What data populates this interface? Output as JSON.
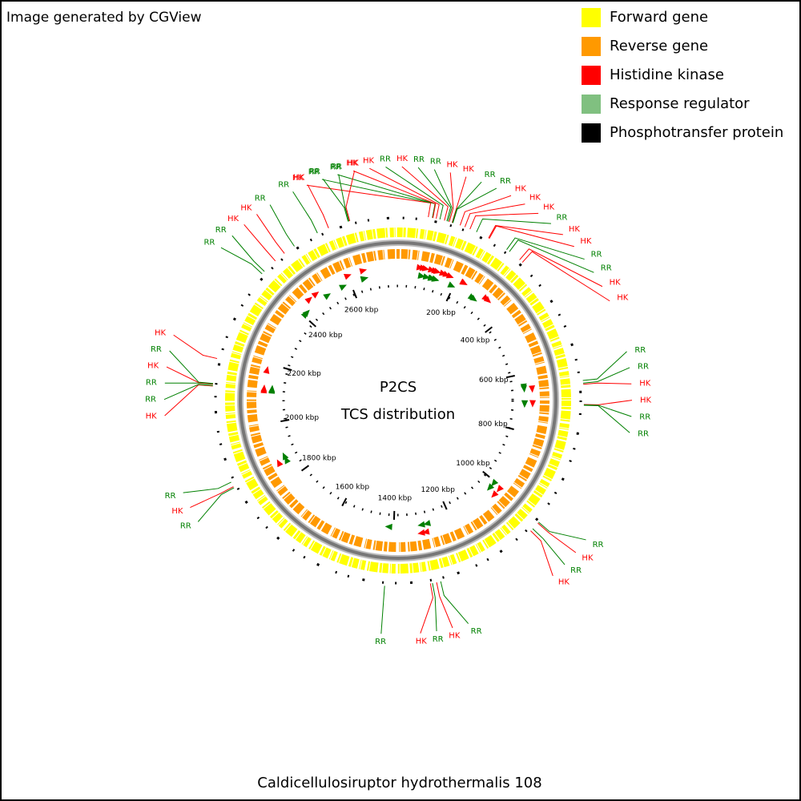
{
  "header": {
    "credit": "Image generated by CGView"
  },
  "legend": [
    {
      "label": "Forward gene",
      "color": "#ffff00"
    },
    {
      "label": "Reverse gene",
      "color": "#ff9900"
    },
    {
      "label": "Histidine kinase",
      "color": "#ff0000"
    },
    {
      "label": "Response regulator",
      "color": "#80c080"
    },
    {
      "label": "Phosphotransfer protein",
      "color": "#000000"
    }
  ],
  "center": {
    "title": "P2CS",
    "subtitle": "TCS distribution"
  },
  "footer": "Caldicellulosiruptor hydrothermalis 108",
  "genome": {
    "range_kbp": [
      0,
      2770
    ],
    "ticks": [
      {
        "value": 200,
        "label": "200 kbp"
      },
      {
        "value": 400,
        "label": "400 kbp"
      },
      {
        "value": 600,
        "label": "600 kbp"
      },
      {
        "value": 800,
        "label": "800 kbp"
      },
      {
        "value": 1000,
        "label": "1000 kbp"
      },
      {
        "value": 1200,
        "label": "1200 kbp"
      },
      {
        "value": 1400,
        "label": "1400 kbp"
      },
      {
        "value": 1600,
        "label": "1600 kbp"
      },
      {
        "value": 1800,
        "label": "1800 kbp"
      },
      {
        "value": 2000,
        "label": "2000 kbp"
      },
      {
        "value": 2200,
        "label": "2200 kbp"
      },
      {
        "value": 2400,
        "label": "2400 kbp"
      },
      {
        "value": 2600,
        "label": "2600 kbp"
      }
    ],
    "annotation_colors": {
      "HK": "#ff0000",
      "RR": "#008000"
    },
    "marker_colors": {
      "HK": "#ff0000",
      "RR": "#008000"
    },
    "annotations": [
      {
        "label": "HK",
        "position_kbp": 72
      },
      {
        "label": "RR",
        "position_kbp": 82
      },
      {
        "label": "RR",
        "position_kbp": 82
      },
      {
        "label": "HK",
        "position_kbp": 83
      },
      {
        "label": "HK",
        "position_kbp": 91
      },
      {
        "label": "RR",
        "position_kbp": 100
      },
      {
        "label": "HK",
        "position_kbp": 111
      },
      {
        "label": "RR",
        "position_kbp": 117
      },
      {
        "label": "RR",
        "position_kbp": 120
      },
      {
        "label": "HK",
        "position_kbp": 123
      },
      {
        "label": "HK",
        "position_kbp": 130
      },
      {
        "label": "RR",
        "position_kbp": 131
      },
      {
        "label": "RR",
        "position_kbp": 132
      },
      {
        "label": "HK",
        "position_kbp": 150
      },
      {
        "label": "HK",
        "position_kbp": 162
      },
      {
        "label": "HK",
        "position_kbp": 175
      },
      {
        "label": "RR",
        "position_kbp": 192
      },
      {
        "label": "HK",
        "position_kbp": 224
      },
      {
        "label": "HK",
        "position_kbp": 226
      },
      {
        "label": "RR",
        "position_kbp": 275
      },
      {
        "label": "RR",
        "position_kbp": 283
      },
      {
        "label": "HK",
        "position_kbp": 314
      },
      {
        "label": "HK",
        "position_kbp": 323
      },
      {
        "label": "RR",
        "position_kbp": 645
      },
      {
        "label": "RR",
        "position_kbp": 651
      },
      {
        "label": "HK",
        "position_kbp": 654
      },
      {
        "label": "HK",
        "position_kbp": 702
      },
      {
        "label": "RR",
        "position_kbp": 703
      },
      {
        "label": "RR",
        "position_kbp": 704
      },
      {
        "label": "RR",
        "position_kbp": 1007
      },
      {
        "label": "HK",
        "position_kbp": 1010
      },
      {
        "label": "RR",
        "position_kbp": 1028
      },
      {
        "label": "HK",
        "position_kbp": 1035
      },
      {
        "label": "RR",
        "position_kbp": 1283
      },
      {
        "label": "HK",
        "position_kbp": 1293
      },
      {
        "label": "RR",
        "position_kbp": 1303
      },
      {
        "label": "HK",
        "position_kbp": 1308
      },
      {
        "label": "RR",
        "position_kbp": 1417
      },
      {
        "label": "RR",
        "position_kbp": 1862
      },
      {
        "label": "HK",
        "position_kbp": 1865
      },
      {
        "label": "RR",
        "position_kbp": 1877
      },
      {
        "label": "HK",
        "position_kbp": 2112
      },
      {
        "label": "RR",
        "position_kbp": 2113
      },
      {
        "label": "RR",
        "position_kbp": 2116
      },
      {
        "label": "HK",
        "position_kbp": 2117
      },
      {
        "label": "RR",
        "position_kbp": 2118
      },
      {
        "label": "HK",
        "position_kbp": 2178
      },
      {
        "label": "RR",
        "position_kbp": 2408
      },
      {
        "label": "RR",
        "position_kbp": 2416
      },
      {
        "label": "HK",
        "position_kbp": 2452
      },
      {
        "label": "HK",
        "position_kbp": 2480
      },
      {
        "label": "RR",
        "position_kbp": 2509
      },
      {
        "label": "RR",
        "position_kbp": 2572
      },
      {
        "label": "HK",
        "position_kbp": 2601
      },
      {
        "label": "RR",
        "position_kbp": 2650
      },
      {
        "label": "RR",
        "position_kbp": 2652
      },
      {
        "label": "HK",
        "position_kbp": 2654
      }
    ]
  }
}
